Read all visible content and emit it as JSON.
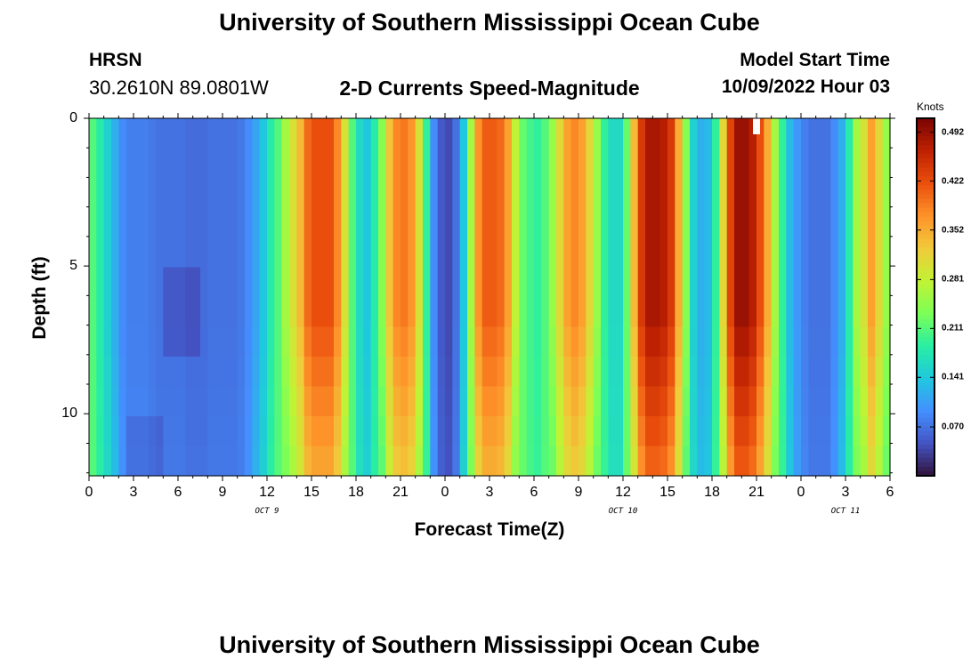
{
  "header": {
    "title": "University of Southern Mississippi Ocean Cube",
    "station_name": "HRSN",
    "station_coords": "30.2610N  89.0801W",
    "plot_title": "2-D Currents Speed-Magnitude",
    "model_start_label": "Model Start Time",
    "model_start_value": "10/09/2022 Hour 03"
  },
  "footer": {
    "title": "University of Southern Mississippi Ocean Cube"
  },
  "chart_data": {
    "type": "heatmap",
    "title": "2-D Currents Speed-Magnitude",
    "xlabel": "Forecast Time(Z)",
    "ylabel": "Depth (ft)",
    "x_tick_labels": [
      "0",
      "3",
      "6",
      "9",
      "12",
      "15",
      "18",
      "21",
      "0",
      "3",
      "6",
      "9",
      "12",
      "15",
      "18",
      "21",
      "0",
      "3",
      "6"
    ],
    "x_range_hours": [
      0,
      54
    ],
    "x_tick_step_hours": 3,
    "date_labels": [
      {
        "text": "OCT 9",
        "hour": 12
      },
      {
        "text": "OCT 10",
        "hour": 36
      },
      {
        "text": "OCT 11",
        "hour": 51
      }
    ],
    "y_tick_labels": [
      "0",
      "5",
      "10"
    ],
    "y_tick_values": [
      0,
      5,
      10
    ],
    "y_range_ft": [
      0,
      12.1
    ],
    "depth_rows": 12,
    "colorbar": {
      "unit": "Knots",
      "tick_labels": [
        "0.492",
        "0.422",
        "0.352",
        "0.281",
        "0.211",
        "0.141",
        "0.070"
      ],
      "tick_values": [
        0.492,
        0.422,
        0.352,
        0.281,
        0.211,
        0.141,
        0.07
      ],
      "range": [
        0.0,
        0.512
      ],
      "colors": [
        "#30123b",
        "#4454c4",
        "#4490fe",
        "#1fc8de",
        "#29efa2",
        "#7dff56",
        "#c1f334",
        "#f1ca3a",
        "#fe922a",
        "#ea4f0d",
        "#be2102",
        "#7a0403"
      ]
    },
    "surface_profile_knots": [
      0.21,
      0.18,
      0.15,
      0.12,
      0.09,
      0.08,
      0.08,
      0.08,
      0.075,
      0.07,
      0.07,
      0.07,
      0.07,
      0.065,
      0.065,
      0.065,
      0.07,
      0.07,
      0.07,
      0.07,
      0.075,
      0.09,
      0.11,
      0.14,
      0.18,
      0.21,
      0.26,
      0.3,
      0.34,
      0.4,
      0.42,
      0.42,
      0.42,
      0.38,
      0.3,
      0.21,
      0.16,
      0.14,
      0.18,
      0.24,
      0.33,
      0.38,
      0.39,
      0.37,
      0.3,
      0.19,
      0.09,
      0.05,
      0.04,
      0.07,
      0.14,
      0.26,
      0.37,
      0.41,
      0.41,
      0.4,
      0.36,
      0.28,
      0.22,
      0.2,
      0.19,
      0.21,
      0.25,
      0.31,
      0.36,
      0.38,
      0.36,
      0.31,
      0.25,
      0.19,
      0.16,
      0.16,
      0.22,
      0.34,
      0.44,
      0.48,
      0.48,
      0.47,
      0.44,
      0.35,
      0.24,
      0.15,
      0.12,
      0.13,
      0.19,
      0.31,
      0.43,
      0.49,
      0.49,
      0.47,
      0.42,
      0.35,
      0.26,
      0.19,
      0.13,
      0.1,
      0.08,
      0.07,
      0.07,
      0.07,
      0.09,
      0.12,
      0.18,
      0.26,
      0.3,
      0.36,
      0.31,
      0.25
    ],
    "depth_anomalies": [
      {
        "rows": [
          5,
          7
        ],
        "cols": [
          10,
          14
        ],
        "delta": -0.02
      },
      {
        "rows": [
          10,
          11
        ],
        "cols": [
          5,
          9
        ],
        "delta": -0.015
      }
    ],
    "missing_cell": {
      "hour": 45,
      "depth_row": 0
    }
  }
}
